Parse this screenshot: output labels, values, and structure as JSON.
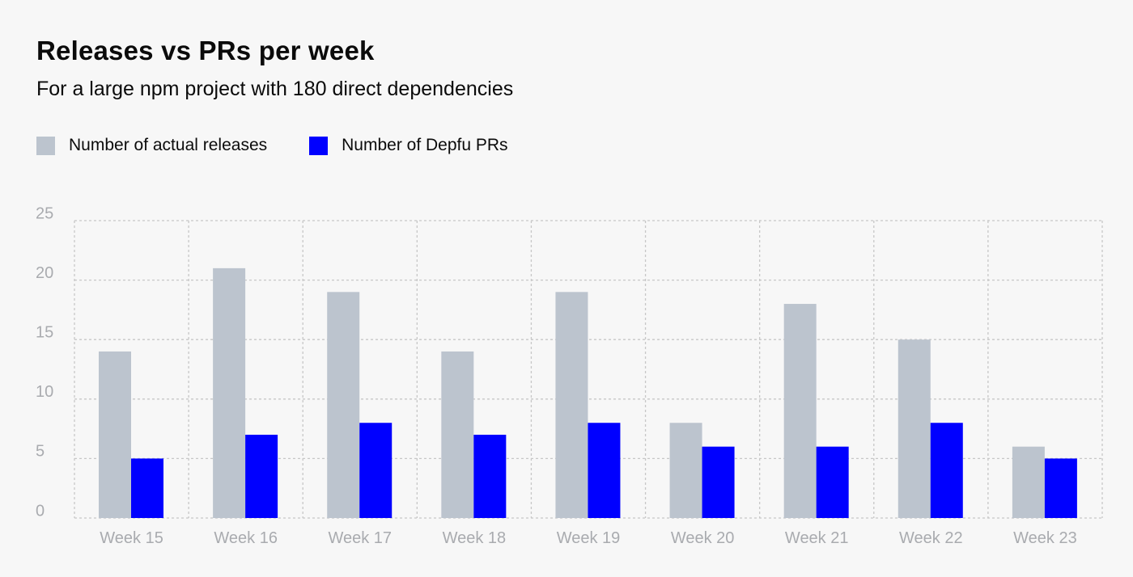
{
  "title": "Releases vs PRs per week",
  "subtitle": "For a large npm project with 180 direct dependencies",
  "legend": [
    {
      "label": "Number of actual releases",
      "color": "#bcc4ce"
    },
    {
      "label": "Number of Depfu PRs",
      "color": "#0000ff"
    }
  ],
  "chart_data": {
    "type": "bar",
    "title": "Releases vs PRs per week",
    "subtitle": "For a large npm project with 180 direct dependencies",
    "xlabel": "",
    "ylabel": "",
    "categories": [
      "Week 15",
      "Week 16",
      "Week 17",
      "Week 18",
      "Week 19",
      "Week 20",
      "Week 21",
      "Week 22",
      "Week 23"
    ],
    "series": [
      {
        "name": "Number of actual releases",
        "color": "#bcc4ce",
        "values": [
          14,
          21,
          19,
          14,
          19,
          8,
          18,
          15,
          6
        ]
      },
      {
        "name": "Number of Depfu PRs",
        "color": "#0000ff",
        "values": [
          5,
          7,
          8,
          7,
          8,
          6,
          6,
          8,
          5
        ]
      }
    ],
    "ylim": [
      0,
      25
    ],
    "yticks": [
      0,
      5,
      10,
      15,
      20,
      25
    ],
    "grid": true,
    "legend_position": "top-left"
  }
}
